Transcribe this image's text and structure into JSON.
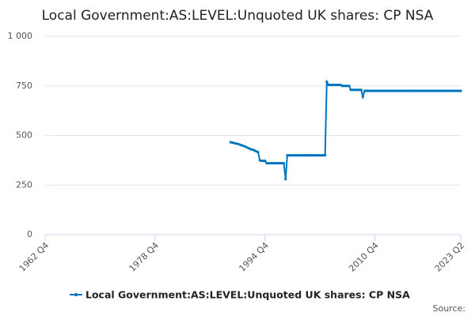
{
  "chart_data": {
    "type": "line",
    "title": "Local Government:AS:LEVEL:Unquoted UK shares: CP NSA",
    "source": "Source:",
    "x": [
      "1989 Q4",
      "1990 Q1",
      "1990 Q2",
      "1990 Q3",
      "1990 Q4",
      "1991 Q1",
      "1991 Q2",
      "1991 Q3",
      "1991 Q4",
      "1992 Q1",
      "1992 Q2",
      "1992 Q3",
      "1992 Q4",
      "1993 Q1",
      "1993 Q2",
      "1993 Q3",
      "1993 Q4",
      "1994 Q1",
      "1994 Q2",
      "1994 Q3",
      "1994 Q4",
      "1995 Q1",
      "1995 Q2",
      "1995 Q3",
      "1995 Q4",
      "1996 Q1",
      "1996 Q2",
      "1996 Q3",
      "1996 Q4",
      "1997 Q1",
      "1997 Q2",
      "1997 Q3",
      "1997 Q4",
      "1998 Q1",
      "1998 Q2",
      "1998 Q3",
      "1998 Q4",
      "1999 Q1",
      "1999 Q2",
      "1999 Q3",
      "1999 Q4",
      "2000 Q1",
      "2000 Q2",
      "2000 Q3",
      "2000 Q4",
      "2001 Q1",
      "2001 Q2",
      "2001 Q3",
      "2001 Q4",
      "2002 Q1",
      "2002 Q2",
      "2002 Q3",
      "2002 Q4",
      "2003 Q1",
      "2003 Q2",
      "2003 Q3",
      "2003 Q4",
      "2004 Q1",
      "2004 Q2",
      "2004 Q3",
      "2004 Q4",
      "2005 Q1",
      "2005 Q2",
      "2005 Q3",
      "2005 Q4",
      "2006 Q1",
      "2006 Q2",
      "2006 Q3",
      "2006 Q4",
      "2007 Q1",
      "2007 Q2",
      "2007 Q3",
      "2007 Q4",
      "2008 Q1",
      "2008 Q2",
      "2008 Q3",
      "2008 Q4",
      "2009 Q1",
      "2009 Q2",
      "2009 Q3",
      "2009 Q4",
      "2010 Q1",
      "2010 Q2",
      "2010 Q3",
      "2010 Q4",
      "2011 Q1",
      "2011 Q2",
      "2011 Q3",
      "2011 Q4",
      "2012 Q1",
      "2012 Q2",
      "2012 Q3",
      "2012 Q4",
      "2013 Q1",
      "2013 Q2",
      "2013 Q3",
      "2013 Q4",
      "2014 Q1",
      "2014 Q2",
      "2014 Q3",
      "2014 Q4",
      "2015 Q1",
      "2015 Q2",
      "2015 Q3",
      "2015 Q4",
      "2016 Q1",
      "2016 Q2",
      "2016 Q3",
      "2016 Q4",
      "2017 Q1",
      "2017 Q2",
      "2017 Q3",
      "2017 Q4",
      "2018 Q1",
      "2018 Q2",
      "2018 Q3",
      "2018 Q4",
      "2019 Q1",
      "2019 Q2",
      "2019 Q3",
      "2019 Q4",
      "2020 Q1",
      "2020 Q2",
      "2020 Q3",
      "2020 Q4",
      "2021 Q1",
      "2021 Q2",
      "2021 Q3",
      "2021 Q4",
      "2022 Q1",
      "2022 Q2",
      "2022 Q3",
      "2022 Q4",
      "2023 Q1",
      "2023 Q2"
    ],
    "series": [
      {
        "name": "Local Government:AS:LEVEL:Unquoted UK shares: CP NSA",
        "color": "#0075bf",
        "values": [
          466,
          464,
          462,
          460,
          458,
          455,
          452,
          449,
          446,
          442,
          438,
          434,
          430,
          428,
          424,
          420,
          416,
          375,
          372,
          372,
          372,
          360,
          360,
          360,
          360,
          360,
          360,
          360,
          360,
          360,
          360,
          360,
          280,
          400,
          400,
          400,
          400,
          400,
          400,
          400,
          400,
          400,
          400,
          400,
          400,
          400,
          400,
          400,
          400,
          400,
          400,
          400,
          400,
          400,
          400,
          400,
          770,
          755,
          755,
          755,
          755,
          755,
          755,
          755,
          755,
          750,
          750,
          750,
          750,
          750,
          730,
          730,
          730,
          730,
          730,
          730,
          730,
          695,
          725,
          725,
          725,
          725,
          725,
          725,
          725,
          725,
          725,
          725,
          725,
          725,
          725,
          725,
          725,
          725,
          725,
          725,
          725,
          725,
          725,
          725,
          725,
          725,
          725,
          725,
          725,
          725,
          725,
          725,
          725,
          725,
          725,
          725,
          725,
          725,
          725,
          725,
          725,
          725,
          725,
          725,
          725,
          725,
          725,
          725,
          725,
          725,
          725,
          725,
          725,
          725,
          725,
          725,
          725,
          725,
          725
        ]
      }
    ],
    "xlim": [
      "1962 Q4",
      "2023 Q2"
    ],
    "xticks": [
      "1962 Q4",
      "1978 Q4",
      "1994 Q4",
      "2010 Q4",
      "2023 Q2"
    ],
    "ylim": [
      0,
      1000
    ],
    "yticks": [
      0,
      250,
      500,
      750,
      {
        "value": 1000,
        "label": "1 000"
      }
    ],
    "grid": true
  }
}
